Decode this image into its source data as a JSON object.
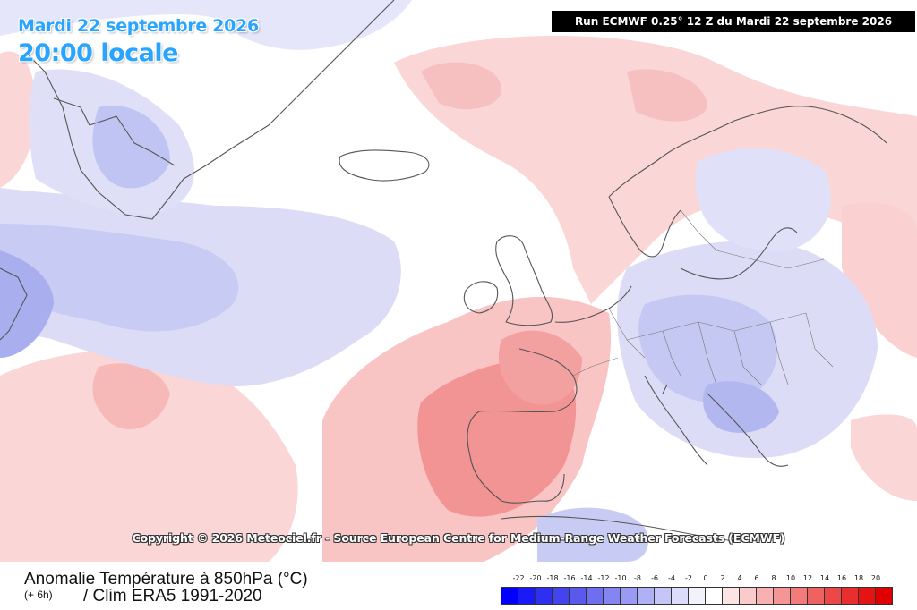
{
  "header": {
    "date_line": "Mardi 22 septembre 2026",
    "time_line": "20:00 locale",
    "run_info": "Run ECMWF 0.25° 12 Z du Mardi 22 septembre 2026"
  },
  "map": {
    "type": "temperature-anomaly",
    "region": "North Atlantic / Europe",
    "colors": {
      "deep_warm": "#f07a7e",
      "warm": "#f7a9aa",
      "mild_warm": "#fbd0d0",
      "neutral": "#ffffff",
      "mild_cold": "#e2e3fb",
      "cold": "#c5c8f5",
      "deep_cold": "#9fa4ee",
      "coast": "#555555"
    }
  },
  "copyright": "Copyright © 2026 Meteociel.fr - Source European Centre for Medium-Range Weather Forecasts (ECMWF)",
  "legend": {
    "title": "Anomalie Température à 850hPa (°C)",
    "step": "(+ 6h)",
    "climatology": "/ Clim ERA5 1991-2020",
    "ticks": [
      "-22",
      "-20",
      "-18",
      "-16",
      "-14",
      "-12",
      "-10",
      "-8",
      "-6",
      "-4",
      "-2",
      "0",
      "2",
      "4",
      "6",
      "8",
      "10",
      "12",
      "14",
      "16",
      "18",
      "20"
    ],
    "swatches": [
      "#0000ff",
      "#1a1af7",
      "#2f2ff2",
      "#4444ee",
      "#5959ee",
      "#6e6ef0",
      "#8585f2",
      "#9a9af4",
      "#b0b0f6",
      "#c5c5f8",
      "#dcdcfa",
      "#f2f2fd",
      "#ffffff",
      "#fde4e4",
      "#fbcaca",
      "#f8b0b0",
      "#f59696",
      "#f27c7c",
      "#ef6262",
      "#ec4848",
      "#e82e2e",
      "#e51414",
      "#e00000"
    ]
  }
}
